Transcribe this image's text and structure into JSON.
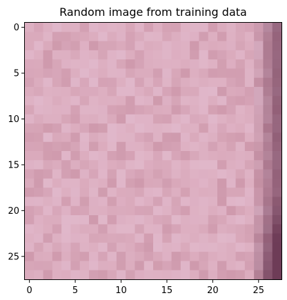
{
  "chart_data": {
    "type": "heatmap",
    "title": "Random image from training data",
    "xlabel": "",
    "ylabel": "",
    "x_ticks": [
      "0",
      "5",
      "10",
      "15",
      "20",
      "25"
    ],
    "y_ticks": [
      "0",
      "5",
      "10",
      "15",
      "20",
      "25"
    ],
    "xlim": [
      -0.5,
      27.5
    ],
    "ylim": [
      27.5,
      -0.5
    ],
    "grid": false,
    "image_size": [
      28,
      28
    ],
    "base_color": "#dcadbf",
    "dark_accent_color": "#6e3c57",
    "light_accent_color": "#e6c4d8"
  }
}
